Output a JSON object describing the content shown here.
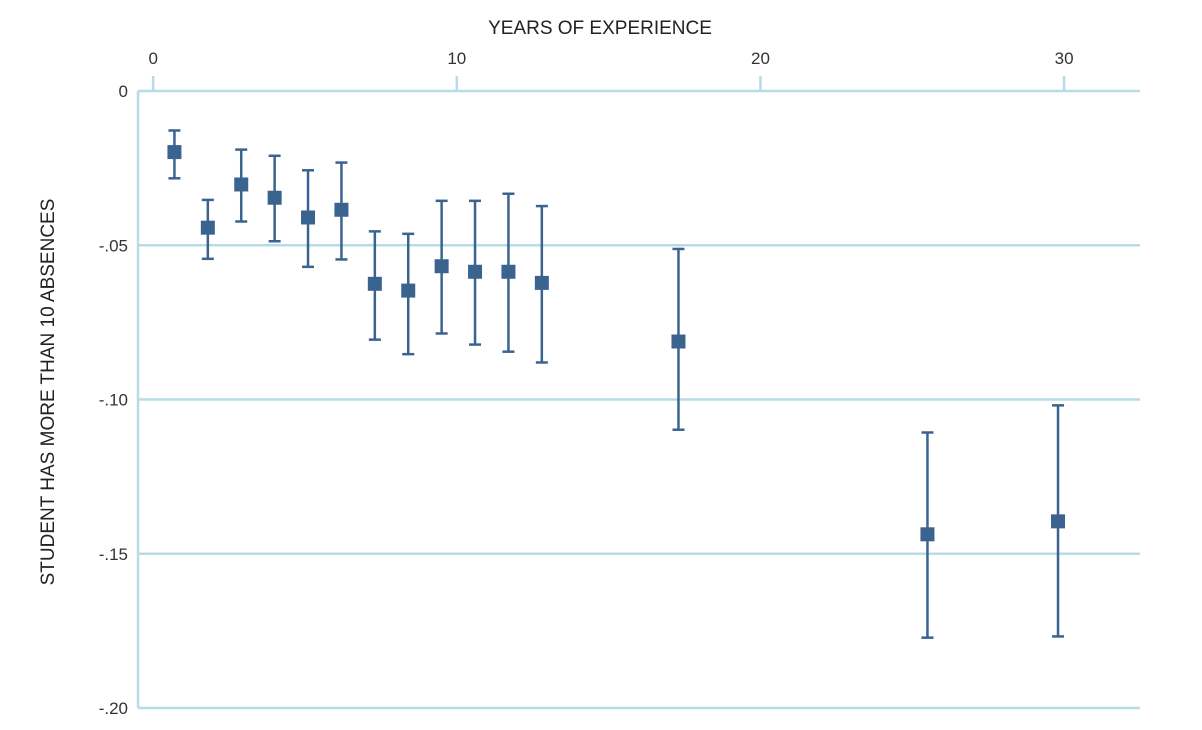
{
  "chart_data": {
    "type": "scatter",
    "subtype": "point-estimates-with-error-bars",
    "xlabel": "YEARS OF EXPERIENCE",
    "ylabel": "STUDENT HAS MORE THAN 10 ABSENCES",
    "xlim": [
      -0.5,
      32.5
    ],
    "ylim": [
      -0.2,
      0
    ],
    "x_axis_position": "top",
    "x_ticks": [
      0,
      10,
      20,
      30
    ],
    "x_tick_labels": [
      "0",
      "10",
      "20",
      "30"
    ],
    "y_ticks": [
      0,
      -0.05,
      -0.1,
      -0.15,
      -0.2
    ],
    "y_tick_labels": [
      "0",
      "-.05",
      "-.10",
      "-.15",
      "-.20"
    ],
    "grid": "horizontal",
    "legend": "none",
    "colors": {
      "marker": "#3b6390",
      "grid": "#b7dce6"
    },
    "series": [
      {
        "points": [
          {
            "x": 0.7,
            "y": -0.0198,
            "lo": -0.0283,
            "hi": -0.0128
          },
          {
            "x": 1.8,
            "y": -0.0443,
            "lo": -0.0544,
            "hi": -0.0353
          },
          {
            "x": 2.9,
            "y": -0.0303,
            "lo": -0.0423,
            "hi": -0.019
          },
          {
            "x": 4.0,
            "y": -0.0346,
            "lo": -0.0487,
            "hi": -0.021
          },
          {
            "x": 5.1,
            "y": -0.041,
            "lo": -0.057,
            "hi": -0.0257
          },
          {
            "x": 6.2,
            "y": -0.0385,
            "lo": -0.0546,
            "hi": -0.0232
          },
          {
            "x": 7.3,
            "y": -0.0625,
            "lo": -0.0806,
            "hi": -0.0455
          },
          {
            "x": 8.4,
            "y": -0.0647,
            "lo": -0.0853,
            "hi": -0.0463
          },
          {
            "x": 9.5,
            "y": -0.0568,
            "lo": -0.0786,
            "hi": -0.0356
          },
          {
            "x": 10.6,
            "y": -0.0586,
            "lo": -0.0822,
            "hi": -0.0356
          },
          {
            "x": 11.7,
            "y": -0.0586,
            "lo": -0.0845,
            "hi": -0.0333
          },
          {
            "x": 12.8,
            "y": -0.0622,
            "lo": -0.088,
            "hi": -0.0373
          },
          {
            "x": 17.3,
            "y": -0.0812,
            "lo": -0.1098,
            "hi": -0.0512
          },
          {
            "x": 25.5,
            "y": -0.1437,
            "lo": -0.1772,
            "hi": -0.1107
          },
          {
            "x": 29.8,
            "y": -0.1395,
            "lo": -0.1768,
            "hi": -0.1019
          }
        ]
      }
    ]
  }
}
